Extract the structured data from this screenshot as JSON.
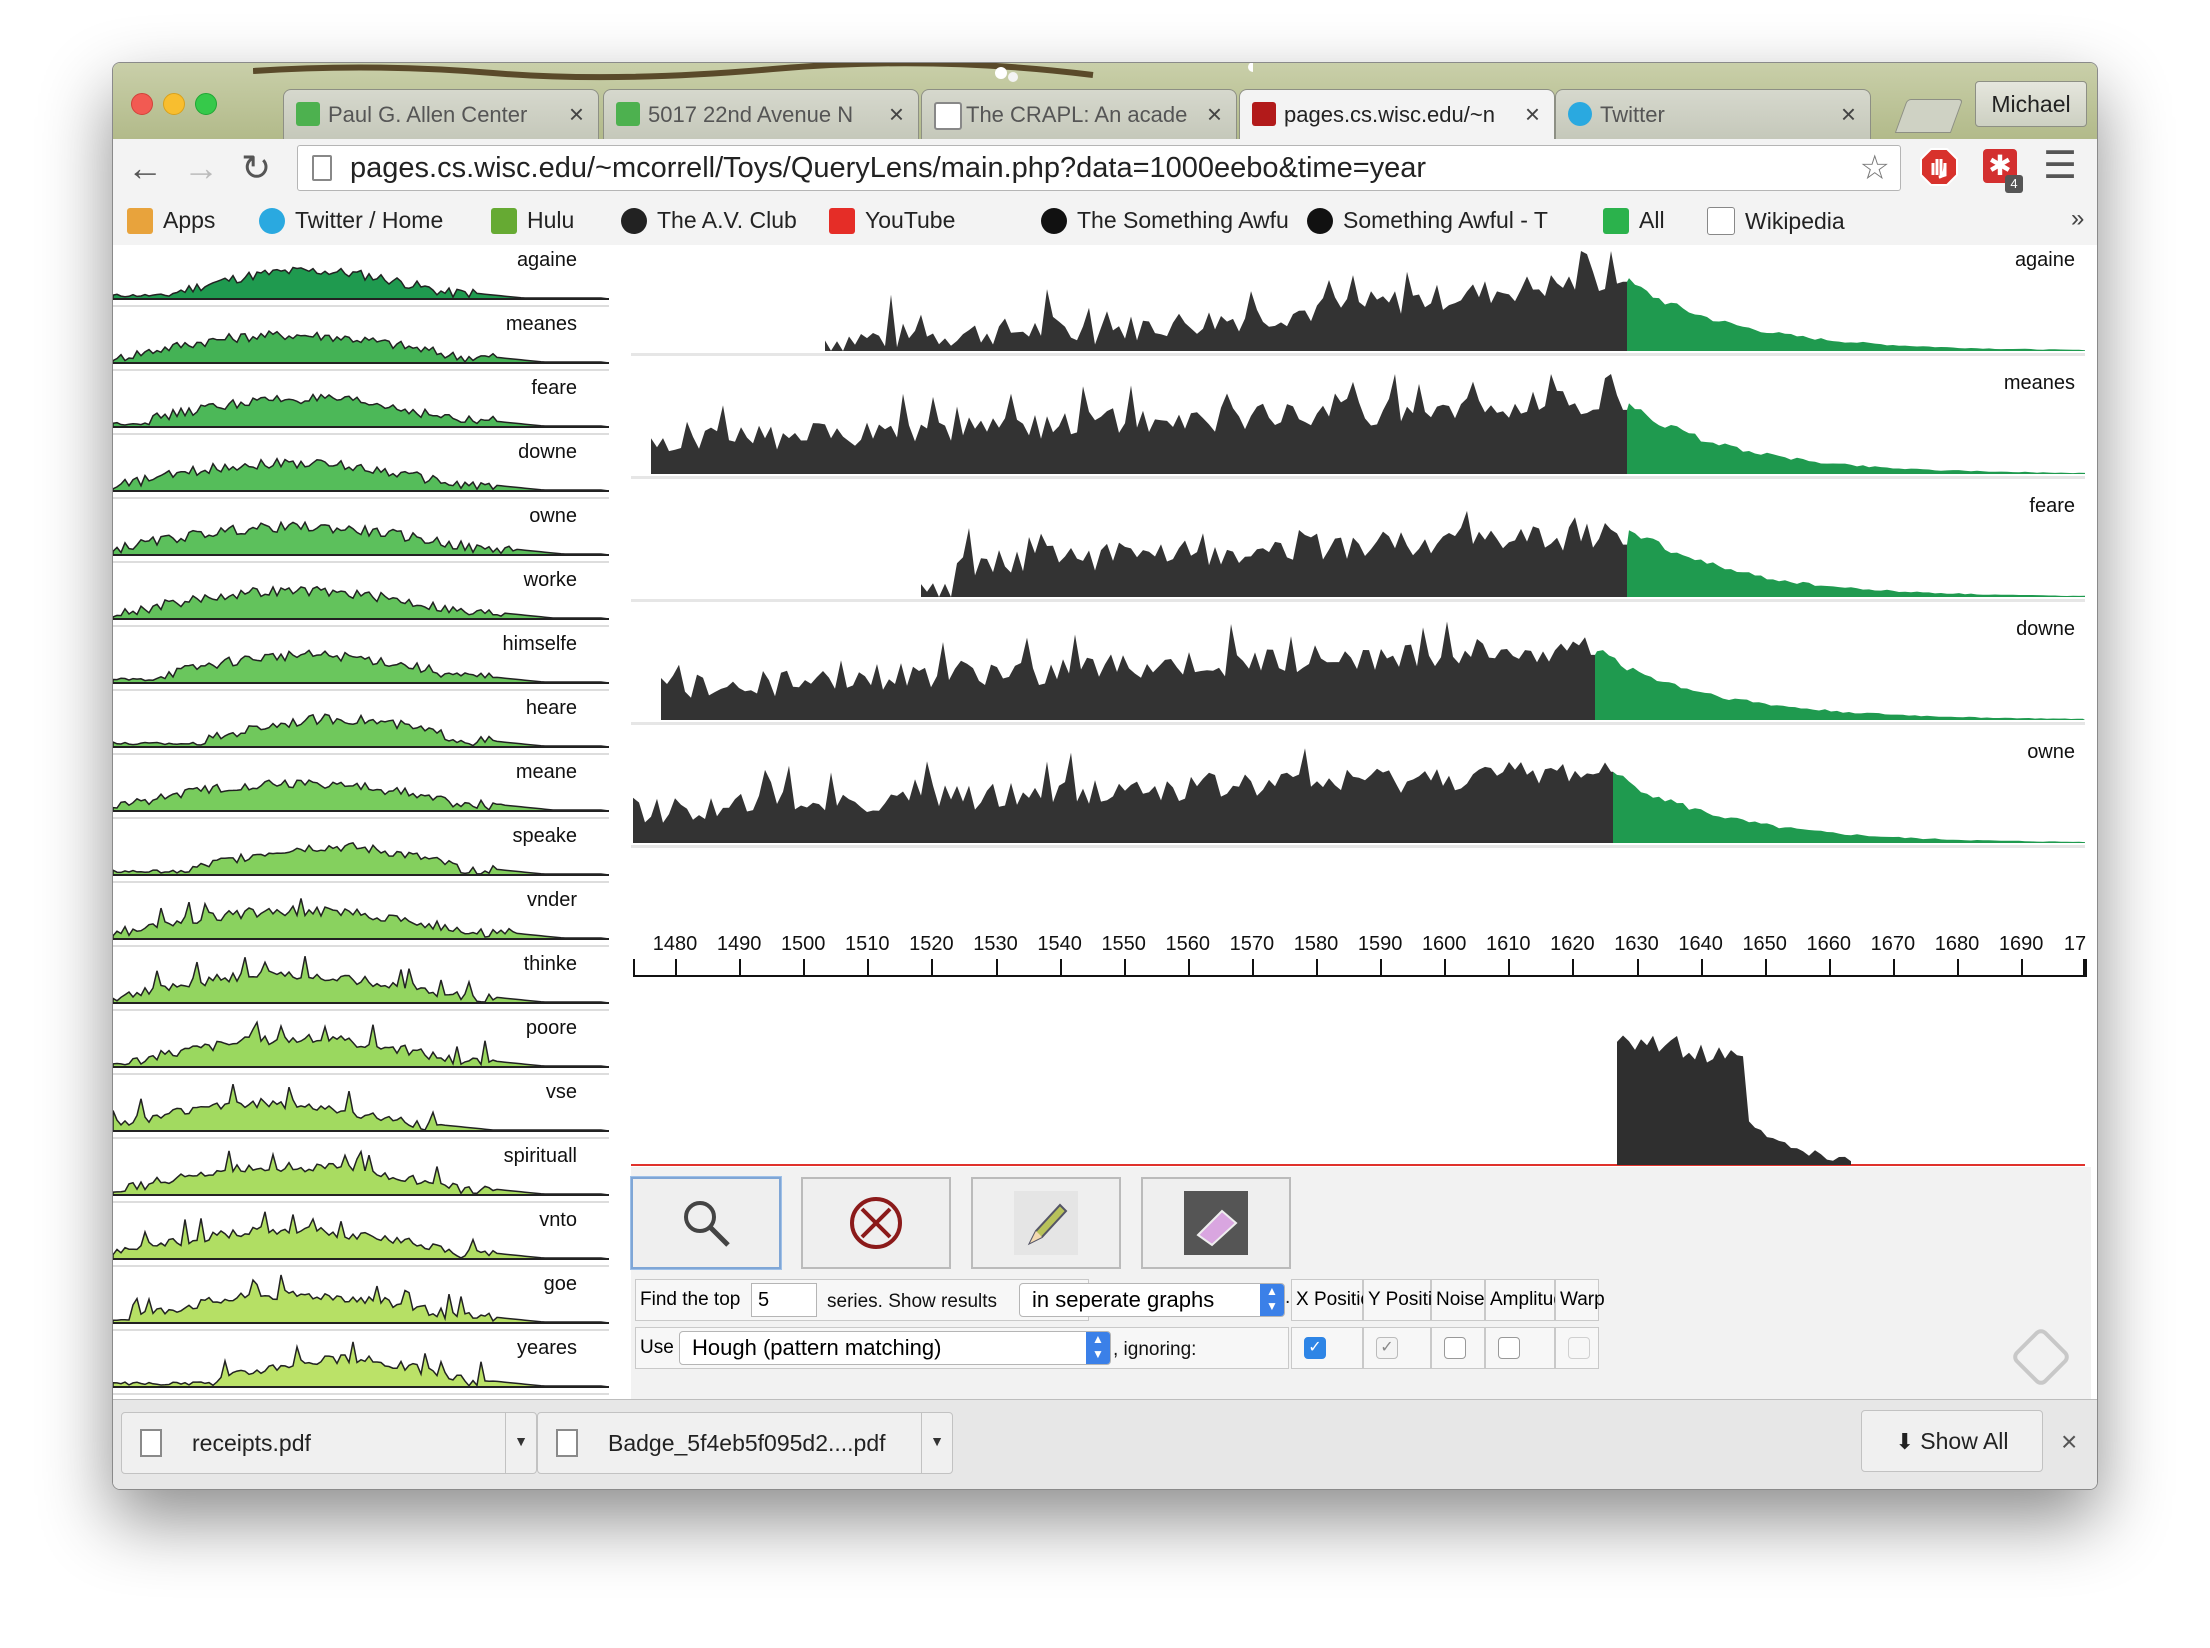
{
  "browser": {
    "tabs": [
      {
        "label": "Paul G. Allen Center",
        "icon": "google-maps-icon",
        "active": false
      },
      {
        "label": "5017 22nd Avenue N",
        "icon": "google-maps-icon",
        "active": false
      },
      {
        "label": "The CRAPL: An acade",
        "icon": "document-icon",
        "active": false
      },
      {
        "label": "pages.cs.wisc.edu/~n",
        "icon": "wisconsin-crest-icon",
        "active": true
      },
      {
        "label": "Twitter",
        "icon": "twitter-bird-icon",
        "active": false
      }
    ],
    "user": "Michael",
    "url_host": "pages.cs.wisc.edu",
    "url_path": "/~mcorrell/Toys/QueryLens/main.php?data=1000eebo&time=year",
    "extension_badge": "4",
    "bookmarks": [
      {
        "label": "Apps",
        "icon": "apps-grid-icon"
      },
      {
        "label": "Twitter / Home",
        "icon": "twitter-bird-icon"
      },
      {
        "label": "Hulu",
        "icon": "hulu-icon"
      },
      {
        "label": "The A.V. Club",
        "icon": "av-club-icon"
      },
      {
        "label": "YouTube",
        "icon": "youtube-icon"
      },
      {
        "label": "The Something Awfu",
        "icon": "grenade-icon"
      },
      {
        "label": "Something Awful - T",
        "icon": "grenade-icon"
      },
      {
        "label": "All",
        "icon": "feedly-icon"
      },
      {
        "label": "Wikipedia",
        "icon": "wikipedia-icon"
      }
    ],
    "bookmarks_overflow": "»"
  },
  "sidebar": {
    "words": [
      "againe",
      "meanes",
      "feare",
      "downe",
      "owne",
      "worke",
      "himselfe",
      "heare",
      "meane",
      "speake",
      "vnder",
      "thinke",
      "poore",
      "vse",
      "spirituall",
      "vnto",
      "goe",
      "yeares"
    ]
  },
  "results": {
    "words": [
      "againe",
      "meanes",
      "feare",
      "downe",
      "owne"
    ],
    "dark_color": "#333333",
    "match_color": "#1f9a4f"
  },
  "axis": {
    "ticks": [
      "1480",
      "1490",
      "1500",
      "1510",
      "1520",
      "1530",
      "1540",
      "1550",
      "1560",
      "1570",
      "1580",
      "1590",
      "1600",
      "1610",
      "1620",
      "1630",
      "1640",
      "1650",
      "1660",
      "1670",
      "1680",
      "1690",
      "17"
    ]
  },
  "tools": [
    {
      "name": "magnify-icon",
      "selected": true
    },
    {
      "name": "clear-icon",
      "selected": false
    },
    {
      "name": "pencil-icon",
      "selected": false
    },
    {
      "name": "eraser-icon",
      "selected": false
    }
  ],
  "form": {
    "find_the_top": "Find the top",
    "top_value": "5",
    "series_show_results": "series. Show results",
    "display_mode": "in seperate graphs",
    "period": ".",
    "use": "Use",
    "method": "Hough (pattern matching)",
    "ignoring": ", ignoring:",
    "invariances": [
      {
        "label": "X Position",
        "checked": true,
        "enabled": true
      },
      {
        "label": "Y Position",
        "checked": true,
        "enabled": false
      },
      {
        "label": "Noise",
        "checked": false,
        "enabled": true
      },
      {
        "label": "Amplitude",
        "checked": false,
        "enabled": true
      },
      {
        "label": "Warp",
        "checked": false,
        "enabled": false
      }
    ]
  },
  "downloads": {
    "items": [
      "receipts.pdf",
      "Badge_5f4eb5f095d2....pdf"
    ],
    "show_all": "Show All",
    "close": "×"
  }
}
